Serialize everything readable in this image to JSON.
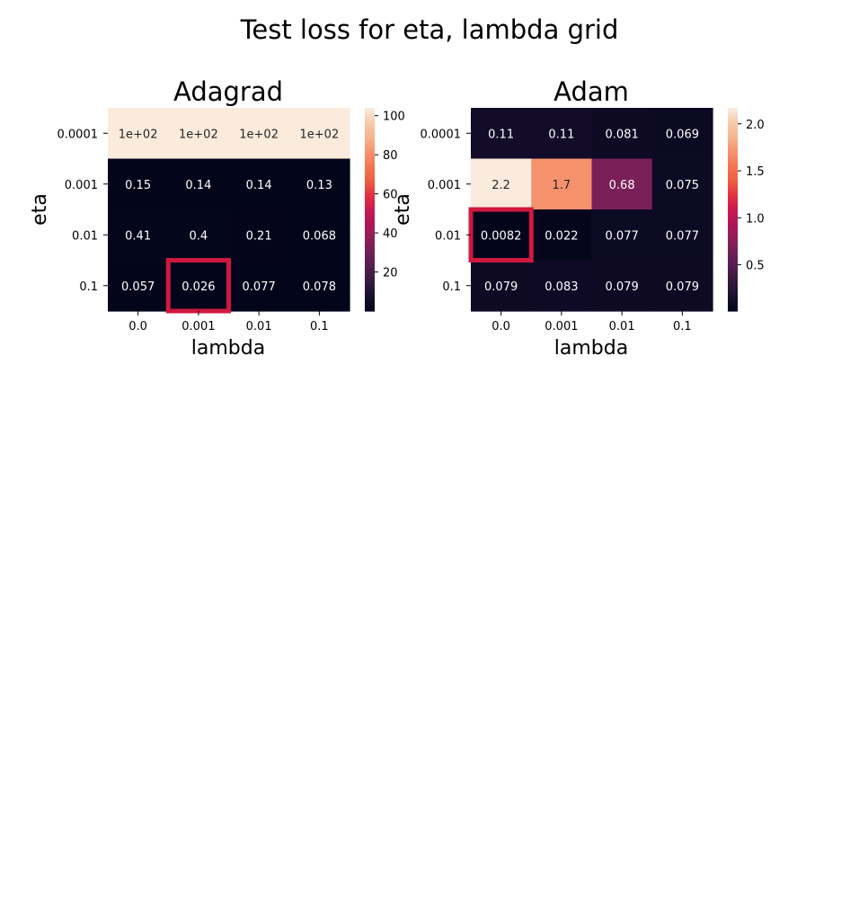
{
  "suptitle": "Test loss for eta, lambda grid",
  "colormap": {
    "name": "rocket",
    "stops": [
      "#03051a",
      "#1a1030",
      "#35193e",
      "#541e4e",
      "#701f57",
      "#8f1f59",
      "#ad1759",
      "#cb1b4f",
      "#e13342",
      "#ee5f43",
      "#f37651",
      "#f5936e",
      "#f6b48e",
      "#f7c9aa",
      "#faebdd"
    ],
    "highlight_color": "#d0183f"
  },
  "chart_data": [
    {
      "type": "heatmap",
      "title": "Adagrad",
      "xlabel": "lambda",
      "ylabel": "eta",
      "x_categories": [
        "0.0",
        "0.001",
        "0.01",
        "0.1"
      ],
      "y_categories": [
        "0.0001",
        "0.001",
        "0.01",
        "0.1"
      ],
      "values": [
        [
          104,
          104,
          104,
          104
        ],
        [
          0.15,
          0.14,
          0.14,
          0.13
        ],
        [
          0.41,
          0.4,
          0.21,
          0.068
        ],
        [
          0.057,
          0.026,
          0.077,
          0.078
        ]
      ],
      "annotations": [
        [
          "1e+02",
          "1e+02",
          "1e+02",
          "1e+02"
        ],
        [
          "0.15",
          "0.14",
          "0.14",
          "0.13"
        ],
        [
          "0.41",
          "0.4",
          "0.21",
          "0.068"
        ],
        [
          "0.057",
          "0.026",
          "0.077",
          "0.078"
        ]
      ],
      "vmin": 0.026,
      "vmax": 104,
      "colorbar_ticks": [
        20,
        40,
        60,
        80,
        100
      ],
      "highlight_cell": {
        "row": 3,
        "col": 1
      }
    },
    {
      "type": "heatmap",
      "title": "Adam",
      "xlabel": "lambda",
      "ylabel": "eta",
      "x_categories": [
        "0.0",
        "0.001",
        "0.01",
        "0.1"
      ],
      "y_categories": [
        "0.0001",
        "0.001",
        "0.01",
        "0.1"
      ],
      "values": [
        [
          0.11,
          0.11,
          0.081,
          0.069
        ],
        [
          2.2,
          1.7,
          0.68,
          0.075
        ],
        [
          0.0082,
          0.022,
          0.077,
          0.077
        ],
        [
          0.079,
          0.083,
          0.079,
          0.079
        ]
      ],
      "annotations": [
        [
          "0.11",
          "0.11",
          "0.081",
          "0.069"
        ],
        [
          "2.2",
          "1.7",
          "0.68",
          "0.075"
        ],
        [
          "0.0082",
          "0.022",
          "0.077",
          "0.077"
        ],
        [
          "0.079",
          "0.083",
          "0.079",
          "0.079"
        ]
      ],
      "vmin": 0.0082,
      "vmax": 2.17,
      "colorbar_ticks": [
        0.5,
        1.0,
        1.5,
        2.0
      ],
      "colorbar_tick_labels": [
        "0.5",
        "1.0",
        "1.5",
        "2.0"
      ],
      "highlight_cell": {
        "row": 2,
        "col": 0
      }
    }
  ]
}
